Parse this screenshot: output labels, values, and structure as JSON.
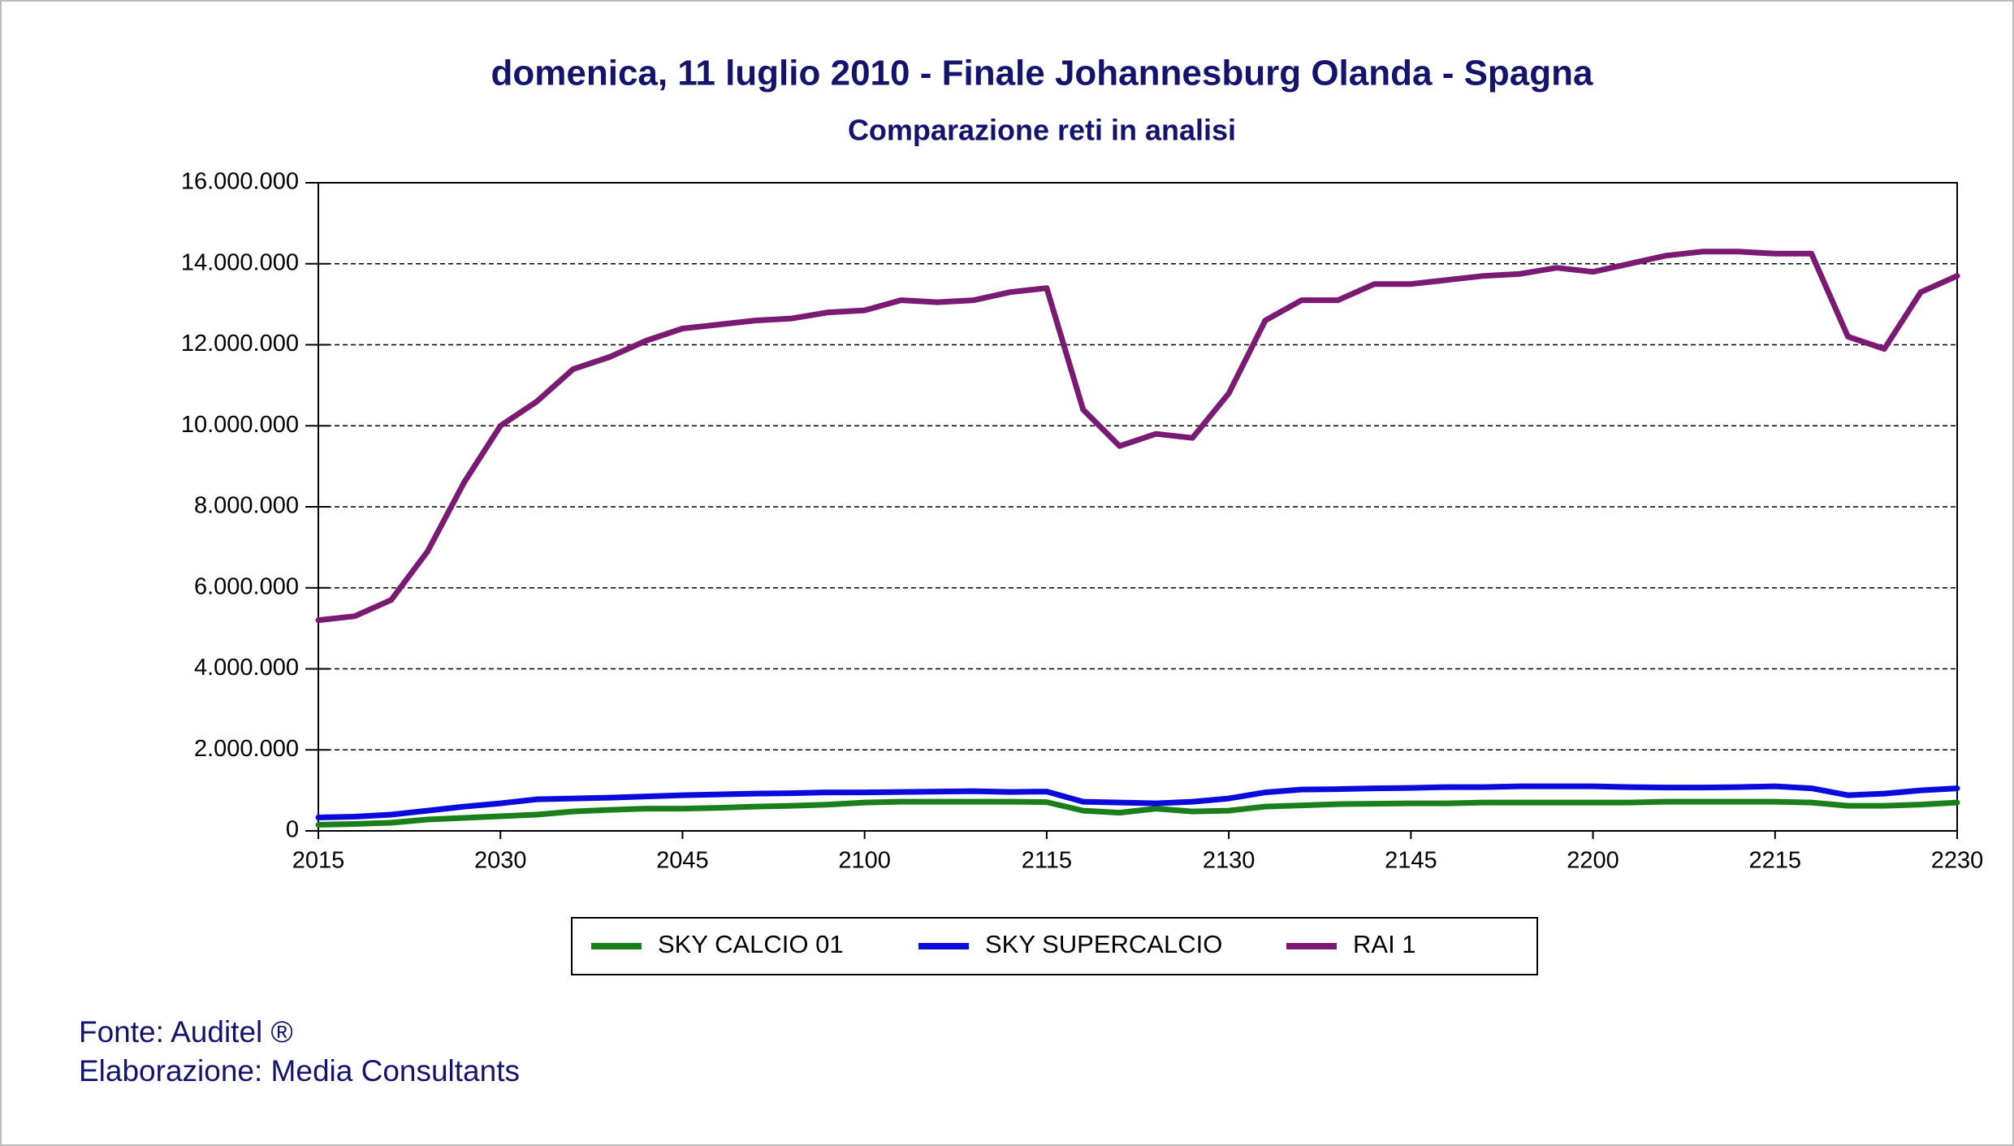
{
  "chart_data": {
    "type": "line",
    "title": "domenica, 11 luglio 2010 - Finale Johannesburg  Olanda - Spagna",
    "subtitle": "Comparazione reti in analisi",
    "source": "Fonte: Auditel ®",
    "credit": "Elaborazione: Media Consultants",
    "categories": [
      "2015",
      null,
      null,
      null,
      null,
      "2030",
      null,
      null,
      null,
      null,
      "2045",
      null,
      null,
      null,
      null,
      "2100",
      null,
      null,
      null,
      null,
      "2115",
      null,
      null,
      null,
      null,
      "2130",
      null,
      null,
      null,
      null,
      "2145",
      null,
      null,
      null,
      null,
      "2200",
      null,
      null,
      null,
      null,
      "2215",
      null,
      null,
      null,
      null,
      "2230"
    ],
    "series": [
      {
        "name": "SKY CALCIO 01",
        "color": "#1a7f1a",
        "values": [
          150000,
          170000,
          200000,
          280000,
          320000,
          360000,
          400000,
          480000,
          520000,
          550000,
          550000,
          570000,
          600000,
          620000,
          650000,
          700000,
          720000,
          720000,
          720000,
          720000,
          710000,
          500000,
          450000,
          550000,
          480000,
          500000,
          600000,
          630000,
          660000,
          670000,
          680000,
          680000,
          700000,
          700000,
          700000,
          700000,
          700000,
          720000,
          720000,
          720000,
          720000,
          700000,
          620000,
          620000,
          650000,
          700000
        ]
      },
      {
        "name": "SKY SUPERCALCIO",
        "color": "#0a0adc",
        "values": [
          330000,
          350000,
          400000,
          500000,
          600000,
          680000,
          780000,
          800000,
          820000,
          850000,
          880000,
          900000,
          920000,
          930000,
          950000,
          950000,
          960000,
          970000,
          980000,
          960000,
          970000,
          720000,
          700000,
          680000,
          720000,
          800000,
          950000,
          1020000,
          1030000,
          1050000,
          1060000,
          1080000,
          1080000,
          1100000,
          1100000,
          1100000,
          1080000,
          1070000,
          1070000,
          1080000,
          1100000,
          1050000,
          880000,
          920000,
          1000000,
          1050000
        ]
      },
      {
        "name": "RAI 1",
        "color": "#7b1a73",
        "values": [
          5200000,
          5300000,
          5700000,
          6900000,
          8600000,
          10000000,
          10600000,
          11400000,
          11700000,
          12100000,
          12400000,
          12500000,
          12600000,
          12650000,
          12800000,
          12850000,
          13100000,
          13050000,
          13100000,
          13300000,
          13400000,
          10400000,
          9500000,
          9800000,
          9700000,
          10800000,
          12600000,
          13100000,
          13100000,
          13500000,
          13500000,
          13600000,
          13700000,
          13750000,
          13900000,
          13800000,
          14000000,
          14200000,
          14300000,
          14300000,
          14250000,
          14250000,
          12200000,
          11900000,
          13300000,
          13700000
        ]
      }
    ],
    "ylim": [
      0,
      16000000
    ],
    "yticks": [
      {
        "value": 0,
        "label": "0"
      },
      {
        "value": 2000000,
        "label": "2.000.000"
      },
      {
        "value": 4000000,
        "label": "4.000.000"
      },
      {
        "value": 6000000,
        "label": "6.000.000"
      },
      {
        "value": 8000000,
        "label": "8.000.000"
      },
      {
        "value": 10000000,
        "label": "10.000.000"
      },
      {
        "value": 12000000,
        "label": "12.000.000"
      },
      {
        "value": 14000000,
        "label": "14.000.000"
      },
      {
        "value": 16000000,
        "label": "16.000.000"
      }
    ],
    "grid": true,
    "legend": "bottom"
  }
}
